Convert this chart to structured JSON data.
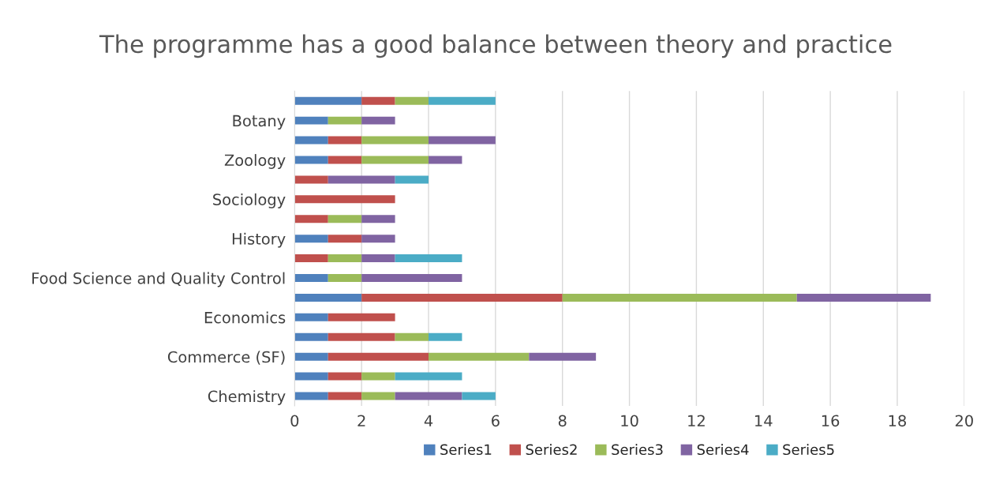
{
  "chart_data": {
    "type": "bar",
    "orientation": "horizontal",
    "stacked": true,
    "title": "The programme has a good balance between theory and practice",
    "categories": [
      null,
      "Botany",
      null,
      "Zoology",
      null,
      "Sociology",
      null,
      "History",
      null,
      "Food Science and Quality Control",
      null,
      "Economics",
      null,
      "Commerce (SF)",
      null,
      "Chemistry"
    ],
    "series": [
      {
        "name": "Series1",
        "color": "#4f81bd",
        "values": [
          2,
          1,
          1,
          1,
          0,
          0,
          0,
          1,
          0,
          1,
          2,
          1,
          1,
          1,
          1,
          1
        ]
      },
      {
        "name": "Series2",
        "color": "#c0504d",
        "values": [
          1,
          0,
          1,
          1,
          1,
          3,
          1,
          1,
          1,
          0,
          6,
          2,
          2,
          3,
          1,
          1
        ]
      },
      {
        "name": "Series3",
        "color": "#9bbb59",
        "values": [
          1,
          1,
          2,
          2,
          0,
          0,
          1,
          0,
          1,
          1,
          7,
          0,
          1,
          3,
          1,
          1
        ]
      },
      {
        "name": "Series4",
        "color": "#8064a2",
        "values": [
          0,
          1,
          2,
          1,
          2,
          0,
          1,
          1,
          1,
          3,
          4,
          0,
          0,
          2,
          0,
          2
        ]
      },
      {
        "name": "Series5",
        "color": "#4bacc6",
        "values": [
          2,
          0,
          0,
          0,
          1,
          0,
          0,
          0,
          2,
          0,
          0,
          0,
          1,
          0,
          2,
          1
        ]
      }
    ],
    "xlim": [
      0,
      20
    ],
    "xticks": [
      0,
      2,
      4,
      6,
      8,
      10,
      12,
      14,
      16,
      18,
      20
    ],
    "grid": "x",
    "legend": "bottom"
  }
}
